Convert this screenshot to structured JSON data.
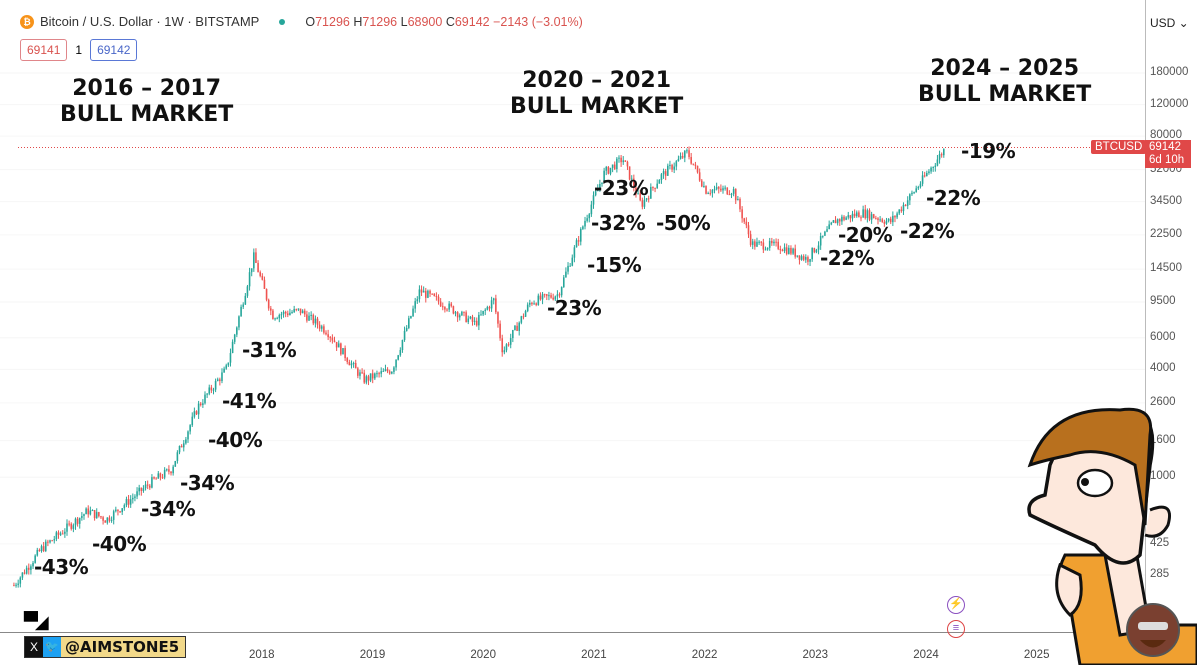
{
  "header": {
    "symbol": "Bitcoin / U.S. Dollar · 1W · BITSTAMP",
    "coin_icon": "₿",
    "open_label": "O",
    "open": "71296",
    "high_label": "H",
    "high": "71296",
    "low_label": "L",
    "low": "68900",
    "close_label": "C",
    "close": "69142",
    "change": "−2143 (−3.01%)",
    "bid": "69141",
    "spread": "1",
    "ask": "69142"
  },
  "titles": [
    {
      "l1": "2016 – 2017",
      "l2": "BULL MARKET"
    },
    {
      "l1": "2020 – 2021",
      "l2": "BULL MARKET"
    },
    {
      "l1": "2024 – 2025",
      "l2": "BULL MARKET"
    }
  ],
  "annotations": [
    "-43%",
    "-40%",
    "-34%",
    "-34%",
    "-40%",
    "-41%",
    "-31%",
    "-23%",
    "-15%",
    "-32%",
    "-23%",
    "-50%",
    "-22%",
    "-20%",
    "-22%",
    "-22%",
    "-19%"
  ],
  "price_axis": {
    "currency": "USD",
    "labels": [
      "180000",
      "120000",
      "80000",
      "52000",
      "34500",
      "22500",
      "14500",
      "9500",
      "6000",
      "4000",
      "2600",
      "1600",
      "1000",
      "425",
      "285"
    ]
  },
  "time_axis": [
    "2018",
    "2019",
    "2020",
    "2021",
    "2022",
    "2023",
    "2024",
    "2025"
  ],
  "price_tag": {
    "symbol": "BTCUSD",
    "price": "69142",
    "countdown": "6d 10h"
  },
  "watermark": {
    "handle": "@AIMSTONE5",
    "x_icon": "X",
    "tw_icon": "🐦",
    "tv_logo": "TV"
  },
  "colors": {
    "up": "#26a69a",
    "down": "#ef5350",
    "tag": "#e04848"
  },
  "chart_data": {
    "type": "candlestick",
    "scale": "log",
    "interval": "1W",
    "title": "Bitcoin / U.S. Dollar",
    "ylim": [
      250,
      230000
    ],
    "anchors": [
      [
        "2015-10",
        250
      ],
      [
        "2016-01",
        400
      ],
      [
        "2016-06",
        650
      ],
      [
        "2016-08",
        580
      ],
      [
        "2017-01",
        950
      ],
      [
        "2017-03",
        1100
      ],
      [
        "2017-06",
        2500
      ],
      [
        "2017-09",
        4000
      ],
      [
        "2017-12",
        17000
      ],
      [
        "2018-02",
        8000
      ],
      [
        "2018-05",
        8500
      ],
      [
        "2018-08",
        6500
      ],
      [
        "2018-11",
        4000
      ],
      [
        "2018-12",
        3500
      ],
      [
        "2019-03",
        4000
      ],
      [
        "2019-06",
        11000
      ],
      [
        "2019-09",
        9000
      ],
      [
        "2019-12",
        7200
      ],
      [
        "2020-02",
        9800
      ],
      [
        "2020-03",
        5000
      ],
      [
        "2020-06",
        9500
      ],
      [
        "2020-09",
        10500
      ],
      [
        "2020-12",
        28000
      ],
      [
        "2021-02",
        50000
      ],
      [
        "2021-04",
        60000
      ],
      [
        "2021-06",
        33000
      ],
      [
        "2021-08",
        47000
      ],
      [
        "2021-11",
        65000
      ],
      [
        "2022-01",
        40000
      ],
      [
        "2022-04",
        40000
      ],
      [
        "2022-06",
        20000
      ],
      [
        "2022-09",
        19500
      ],
      [
        "2022-12",
        16500
      ],
      [
        "2023-03",
        27000
      ],
      [
        "2023-06",
        30000
      ],
      [
        "2023-09",
        26500
      ],
      [
        "2023-12",
        42000
      ],
      [
        "2024-03",
        69142
      ]
    ]
  }
}
